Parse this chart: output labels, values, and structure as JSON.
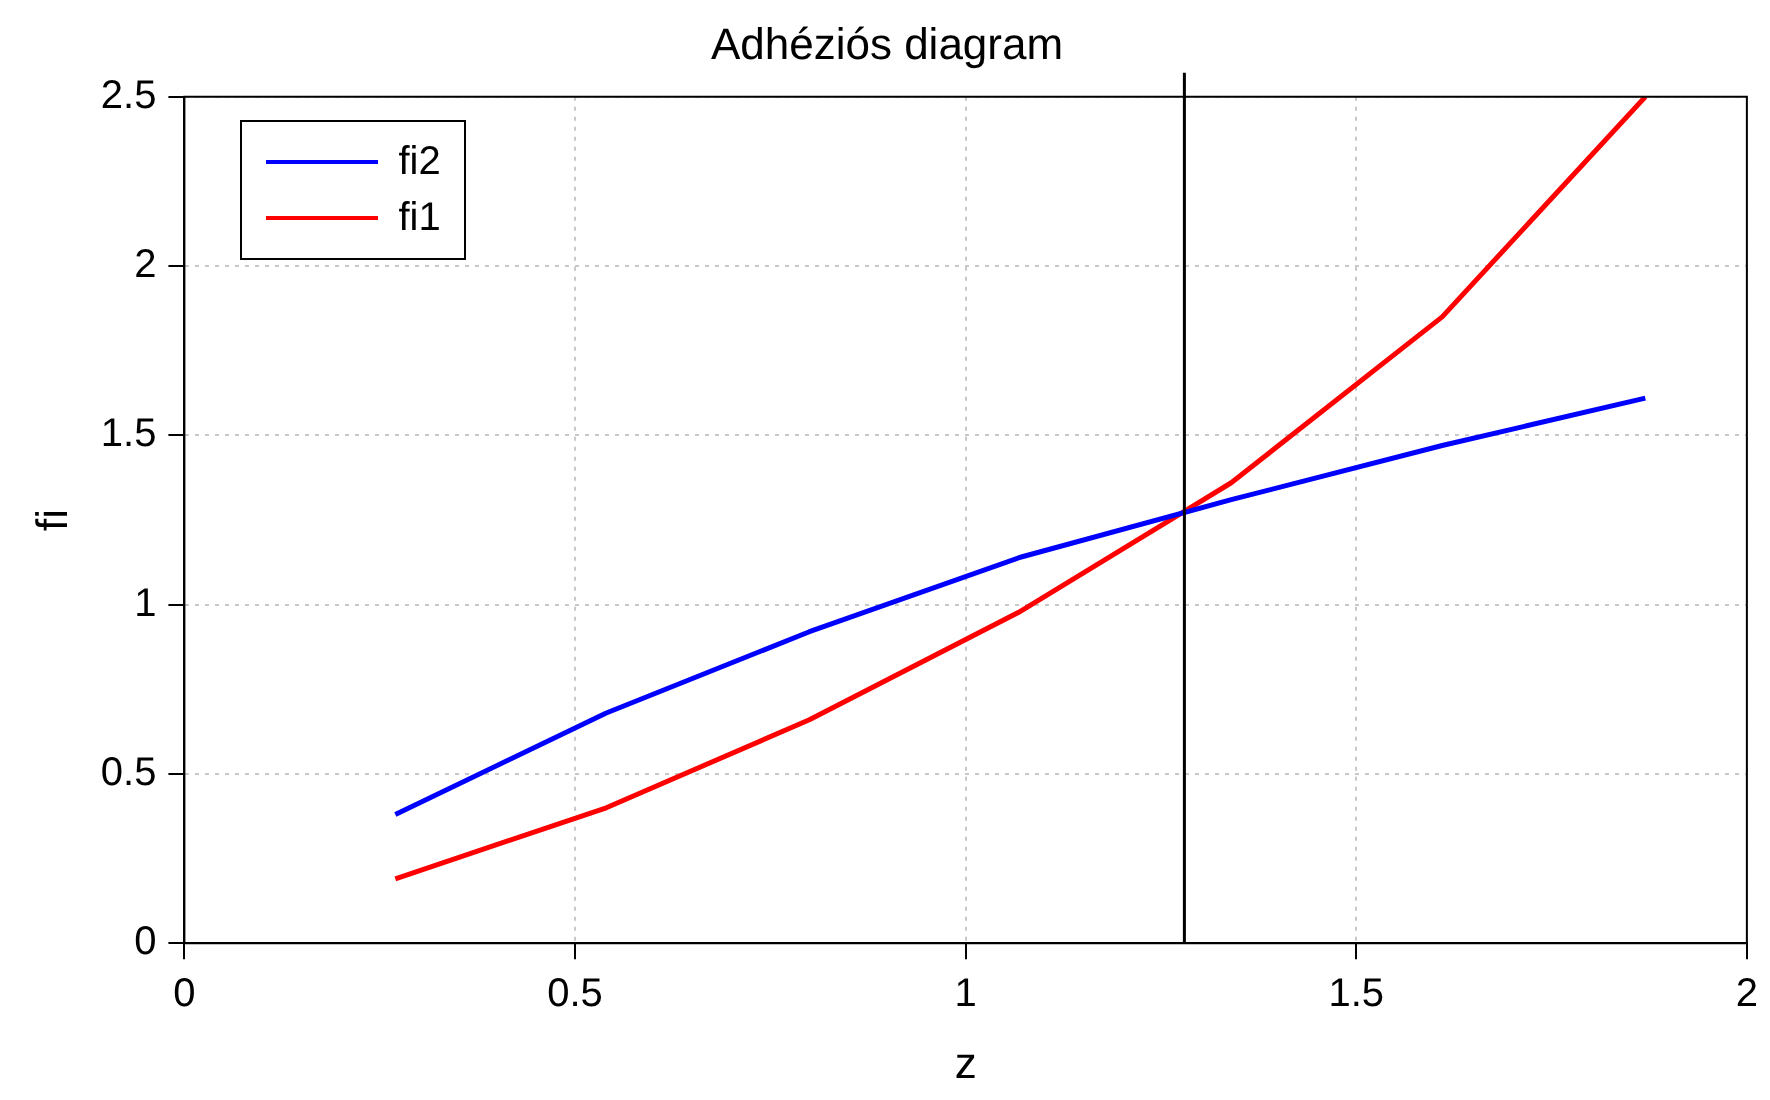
{
  "chart_data": {
    "type": "line",
    "title": "Adhéziós diagram",
    "xlabel": "z",
    "ylabel": "fi",
    "x": [
      0.27,
      0.54,
      0.8,
      1.07,
      1.34,
      1.61,
      1.87
    ],
    "series": [
      {
        "name": "fi2",
        "color": "#0000ff",
        "values": [
          0.38,
          0.68,
          0.92,
          1.14,
          1.31,
          1.47,
          1.61
        ]
      },
      {
        "name": "fi1",
        "color": "#ff0000",
        "values": [
          0.19,
          0.4,
          0.66,
          0.98,
          1.36,
          1.85,
          2.5
        ]
      }
    ],
    "xlim": [
      0,
      2
    ],
    "xticks": [
      0,
      0.5,
      1,
      1.5,
      2
    ],
    "ylim": [
      0,
      2.5
    ],
    "yticks": [
      0,
      0.5,
      1,
      1.5,
      2,
      2.5
    ],
    "ref_lines": [
      {
        "axis": "x",
        "value": 1.28,
        "color": "#000000"
      }
    ],
    "grid": true,
    "legend": "top left",
    "marker": "none",
    "line_style": "solid"
  }
}
